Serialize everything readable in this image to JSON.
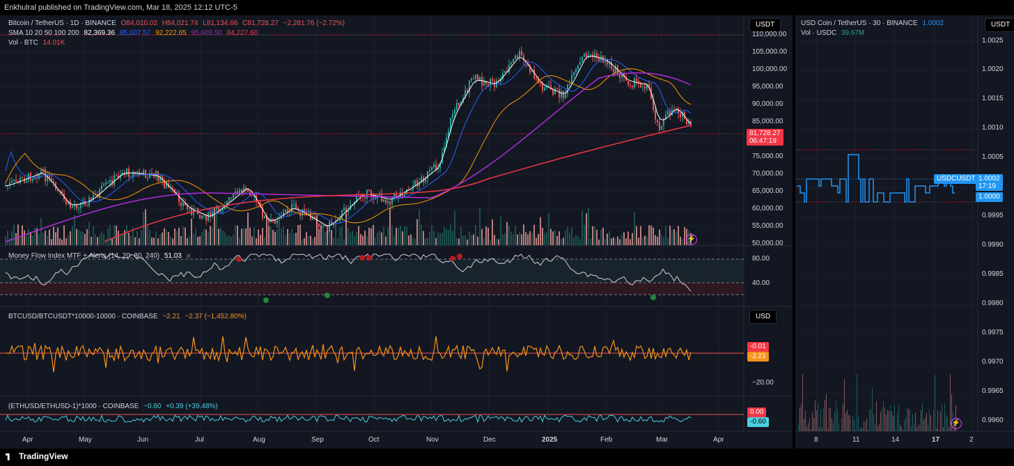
{
  "header": {
    "published": "Enkhulral published on TradingView.com, Mar 18, 2025 12:12 UTC-5"
  },
  "footer": {
    "brand": "TradingView"
  },
  "left_chart": {
    "currency_button": "USDT",
    "symbol_legend": {
      "title": "Bitcoin / TetherUS · 1D · BINANCE",
      "o": "O84,010.02",
      "h": "H84,021.74",
      "l": "L81,134.66",
      "c": "C81,728.27",
      "change": "−2,281.76 (−2.72%)"
    },
    "sma_legend": {
      "label": "SMA 10 20 50 100 200",
      "v10": "82,369.36",
      "v20": "85,007.57",
      "v50": "92,222.65",
      "v100": "95,609.50",
      "v200": "84,227.60"
    },
    "vol_legend": {
      "label": "Vol · BTC",
      "value": "14.01K"
    },
    "price_axis": [
      "110,000.00",
      "105,000.00",
      "100,000.00",
      "95,000.00",
      "90,000.00",
      "85,000.00",
      "75,000.00",
      "70,000.00",
      "65,000.00",
      "60,000.00",
      "55,000.00",
      "50,000.00"
    ],
    "last_price": "81,728.27",
    "countdown": "06:47:19",
    "mfi": {
      "label": "Money Flow Index MTF + Alerts (14, 20, 80, 240)",
      "value": "51.03",
      "axis": [
        "80.00",
        "40.00"
      ]
    },
    "spread": {
      "label": "BTCUSD/BTCUSDT*10000-10000 · COINBASE",
      "v1": "−2.21",
      "v2": "−2.37 (−1,452.80%)",
      "currency_button": "USD",
      "tag_red": "-0.01",
      "tag_orange": "-2.21",
      "axis": "−20.00"
    },
    "eth": {
      "label": "(ETHUSD/ETHUSD-1)*1000 · COINBASE",
      "v1": "−0.60",
      "v2": "+0.39 (+39.48%)",
      "tag_red": "0.00",
      "tag_cyan": "-0.60"
    },
    "time_axis": [
      "Apr",
      "May",
      "Jun",
      "Jul",
      "Aug",
      "Sep",
      "Oct",
      "Nov",
      "Dec",
      "2025",
      "Feb",
      "Mar",
      "Apr"
    ]
  },
  "right_chart": {
    "currency_button": "USDT",
    "symbol_legend": {
      "title": "USD Coin / TetherUS · 30 · BINANCE",
      "value": "1.0002"
    },
    "vol_legend": {
      "label": "Vol · USDC",
      "value": "39.67M"
    },
    "price_axis": [
      "1.0025",
      "1.0020",
      "1.0015",
      "1.0010",
      "1.0005",
      "0.9995",
      "0.9990",
      "0.9985",
      "0.9980",
      "0.9975",
      "0.9970",
      "0.9965",
      "0.9960"
    ],
    "symbol_tag": "USDCUSDT",
    "tag_value": "1.0002",
    "tag_countdown": "17:19",
    "tag_base": "1.0000",
    "time_axis": [
      "8",
      "11",
      "14",
      "17",
      "2"
    ]
  },
  "colors": {
    "bg": "#131722",
    "up": "#26a69a",
    "down": "#ef5350",
    "sma10": "#ffffff",
    "sma20": "#2962ff",
    "sma50": "#ff9800",
    "sma100": "#9c27b0",
    "sma200": "#f23645",
    "spread": "#f7931a",
    "eth": "#4dd0e1",
    "usdc": "#2196f3"
  },
  "icons": [
    "lightning-icon",
    "tradingview-logo-icon"
  ]
}
